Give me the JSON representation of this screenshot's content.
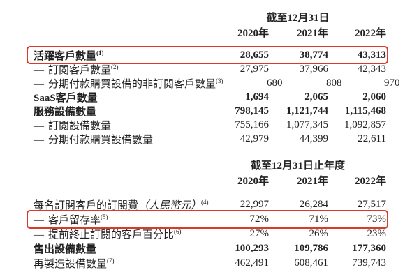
{
  "page": {
    "background": "#ffffff",
    "text_color": "#222222",
    "highlight_color": "#d93a2b"
  },
  "table1": {
    "period_header": "截至12月31日",
    "columns": [
      "2020年",
      "2021年",
      "2022年"
    ],
    "rows": [
      {
        "dash": "",
        "label": "活躍客戶數量",
        "sup": "(1)",
        "values": [
          "28,655",
          "38,774",
          "43,313"
        ],
        "highlighted": true,
        "bold": true
      },
      {
        "dash": "—",
        "label": "訂閱客戶數量",
        "sup": "(2)",
        "values": [
          "27,975",
          "37,966",
          "42,343"
        ],
        "highlighted": false,
        "bold": false
      },
      {
        "dash": "—",
        "label": "分期付款購買設備的非訂閱客戶數量",
        "sup": "(3)",
        "values": [
          "680",
          "808",
          "970"
        ],
        "highlighted": false,
        "bold": false
      },
      {
        "dash": "",
        "label": "SaaS客戶數量",
        "sup": "",
        "values": [
          "1,694",
          "2,065",
          "2,060"
        ],
        "highlighted": false,
        "bold": true
      },
      {
        "dash": "",
        "label": "服務設備數量",
        "sup": "",
        "values": [
          "798,145",
          "1,121,744",
          "1,115,468"
        ],
        "highlighted": false,
        "bold": true
      },
      {
        "dash": "—",
        "label": "訂閱設備數量",
        "sup": "",
        "values": [
          "755,166",
          "1,077,345",
          "1,092,857"
        ],
        "highlighted": false,
        "bold": false
      },
      {
        "dash": "—",
        "label": "分期付款購買設備數量",
        "sup": "",
        "values": [
          "42,979",
          "44,399",
          "22,611"
        ],
        "highlighted": false,
        "bold": false
      }
    ]
  },
  "table2": {
    "period_header": "截至12月31日止年度",
    "columns": [
      "2020年",
      "2021年",
      "2022年"
    ],
    "rows": [
      {
        "dash": "",
        "label": "每名訂閱客戶的訂閱費",
        "label_italic": "（人民幣元）",
        "sup": "(4)",
        "values": [
          "22,997",
          "26,284",
          "27,517"
        ],
        "highlighted": false,
        "bold": false
      },
      {
        "dash": "—",
        "label": "客戶留存率",
        "label_italic": "",
        "sup": "(5)",
        "values": [
          "72%",
          "71%",
          "73%"
        ],
        "highlighted": true,
        "bold": false
      },
      {
        "dash": "—",
        "label": "提前終止訂閱的客戶百分比",
        "label_italic": "",
        "sup": "(6)",
        "values": [
          "27%",
          "26%",
          "23%"
        ],
        "highlighted": false,
        "bold": false
      },
      {
        "dash": "",
        "label": "售出設備數量",
        "label_italic": "",
        "sup": "",
        "values": [
          "100,293",
          "109,786",
          "177,360"
        ],
        "highlighted": false,
        "bold": true
      },
      {
        "dash": "",
        "label": "再製造設備數量",
        "label_italic": "",
        "sup": "(7)",
        "values": [
          "462,491",
          "608,461",
          "739,743"
        ],
        "highlighted": false,
        "bold": false
      }
    ]
  }
}
